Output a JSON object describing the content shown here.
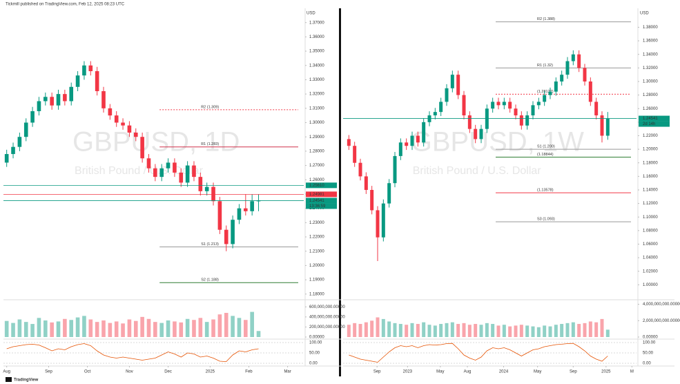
{
  "header": "Tickmill published on TradingView.com, Feb 12, 2025 08:23 UTC",
  "footer": "TradingView",
  "chart_data": [
    {
      "type": "candlestick",
      "title": "GBPUSD, 1D",
      "subtitle": "British Pound / U.S. Dollar",
      "axis_label": "USD",
      "up_color": "#089981",
      "down_color": "#f23645",
      "grid": false,
      "xlim": [
        -0.5,
        46
      ],
      "xticks": [
        {
          "value": 0,
          "label": "Aug"
        },
        {
          "value": 6.5,
          "label": "Sep"
        },
        {
          "value": 12.5,
          "label": "Oct"
        },
        {
          "value": 19,
          "label": "Nov"
        },
        {
          "value": 25,
          "label": "Dec"
        },
        {
          "value": 31.5,
          "label": "2025"
        },
        {
          "value": 37.5,
          "label": "Feb"
        },
        {
          "value": 43.5,
          "label": "Mar"
        }
      ],
      "ylim": [
        1.177,
        1.38
      ],
      "yticks": [
        {
          "value": 1.18,
          "label": "1.18000"
        },
        {
          "value": 1.19,
          "label": "1.19000"
        },
        {
          "value": 1.2,
          "label": "1.20000"
        },
        {
          "value": 1.21,
          "label": "1.21000"
        },
        {
          "value": 1.22,
          "label": "1.22000"
        },
        {
          "value": 1.23,
          "label": "1.23000"
        },
        {
          "value": 1.24,
          "label": "1.24000"
        },
        {
          "value": 1.25,
          "label": "1.25000"
        },
        {
          "value": 1.26,
          "label": "1.26000"
        },
        {
          "value": 1.27,
          "label": "1.27000"
        },
        {
          "value": 1.28,
          "label": "1.28000"
        },
        {
          "value": 1.29,
          "label": "1.29000"
        },
        {
          "value": 1.3,
          "label": "1.30000"
        },
        {
          "value": 1.31,
          "label": "1.31000"
        },
        {
          "value": 1.32,
          "label": "1.32000"
        },
        {
          "value": 1.33,
          "label": "1.33000"
        },
        {
          "value": 1.34,
          "label": "1.34000"
        },
        {
          "value": 1.35,
          "label": "1.35000"
        },
        {
          "value": 1.36,
          "label": "1.36000"
        },
        {
          "value": 1.37,
          "label": "1.37000"
        }
      ],
      "ohlc": [
        [
          1.272,
          1.281,
          1.269,
          1.278
        ],
        [
          1.278,
          1.286,
          1.275,
          1.283
        ],
        [
          1.283,
          1.293,
          1.28,
          1.29
        ],
        [
          1.29,
          1.303,
          1.287,
          1.3
        ],
        [
          1.3,
          1.311,
          1.297,
          1.308
        ],
        [
          1.308,
          1.318,
          1.305,
          1.315
        ],
        [
          1.315,
          1.321,
          1.312,
          1.318
        ],
        [
          1.318,
          1.321,
          1.309,
          1.312
        ],
        [
          1.312,
          1.323,
          1.309,
          1.32
        ],
        [
          1.32,
          1.323,
          1.312,
          1.315
        ],
        [
          1.315,
          1.328,
          1.312,
          1.325
        ],
        [
          1.325,
          1.336,
          1.322,
          1.333
        ],
        [
          1.333,
          1.343,
          1.33,
          1.34
        ],
        [
          1.34,
          1.343,
          1.333,
          1.336
        ],
        [
          1.336,
          1.339,
          1.319,
          1.322
        ],
        [
          1.322,
          1.325,
          1.307,
          1.31
        ],
        [
          1.31,
          1.313,
          1.302,
          1.305
        ],
        [
          1.305,
          1.308,
          1.297,
          1.3
        ],
        [
          1.3,
          1.303,
          1.295,
          1.298
        ],
        [
          1.298,
          1.301,
          1.29,
          1.293
        ],
        [
          1.293,
          1.296,
          1.287,
          1.29
        ],
        [
          1.29,
          1.293,
          1.272,
          1.275
        ],
        [
          1.275,
          1.278,
          1.265,
          1.268
        ],
        [
          1.268,
          1.271,
          1.259,
          1.262
        ],
        [
          1.262,
          1.271,
          1.259,
          1.268
        ],
        [
          1.268,
          1.275,
          1.265,
          1.272
        ],
        [
          1.272,
          1.275,
          1.262,
          1.265
        ],
        [
          1.265,
          1.268,
          1.255,
          1.258
        ],
        [
          1.258,
          1.273,
          1.255,
          1.27
        ],
        [
          1.27,
          1.273,
          1.259,
          1.262
        ],
        [
          1.262,
          1.265,
          1.249,
          1.252
        ],
        [
          1.252,
          1.258,
          1.249,
          1.255
        ],
        [
          1.255,
          1.258,
          1.242,
          1.245
        ],
        [
          1.245,
          1.248,
          1.222,
          1.225
        ],
        [
          1.225,
          1.228,
          1.21,
          1.215
        ],
        [
          1.215,
          1.235,
          1.212,
          1.232
        ],
        [
          1.232,
          1.243,
          1.229,
          1.24
        ],
        [
          1.24,
          1.25,
          1.235,
          1.238
        ],
        [
          1.238,
          1.25,
          1.235,
          1.245
        ],
        [
          1.245,
          1.2498,
          1.238,
          1.2454
        ]
      ],
      "levels": [
        {
          "label": "R2 (1.309)",
          "value": 1.309,
          "color": "#f23645",
          "dash": true
        },
        {
          "label": "R1 (1.283)",
          "value": 1.283,
          "color": "#d0304a",
          "dash": false
        },
        {
          "label": "S1 (1.213)",
          "value": 1.213,
          "color": "#999999",
          "dash": false
        },
        {
          "label": "S2 (1.188)",
          "value": 1.188,
          "color": "#2e7d32",
          "dash": false
        }
      ],
      "price_tags": [
        {
          "value": 1.2561,
          "label": "1.25610",
          "color": "#089981"
        },
        {
          "value": 1.24981,
          "label": "1.24981",
          "color": "#f23645"
        },
        {
          "value": 1.24541,
          "label": "1.24541",
          "color": "#089981"
        }
      ],
      "countdown": "13:36:59",
      "volume": [
        320000000,
        280000000,
        350000000,
        300000000,
        260000000,
        380000000,
        330000000,
        290000000,
        310000000,
        360000000,
        340000000,
        390000000,
        420000000,
        350000000,
        300000000,
        330000000,
        280000000,
        310000000,
        270000000,
        350000000,
        320000000,
        400000000,
        360000000,
        300000000,
        280000000,
        330000000,
        310000000,
        290000000,
        360000000,
        340000000,
        380000000,
        300000000,
        350000000,
        450000000,
        480000000,
        420000000,
        380000000,
        340000000,
        500000000,
        120000000
      ],
      "vlim": [
        0,
        700000000
      ],
      "vticks": [
        {
          "value": 0,
          "label": "0.00000"
        },
        {
          "value": 200000000,
          "label": "200,000,000.00000"
        },
        {
          "value": 400000000,
          "label": "400,000,000.00000"
        },
        {
          "value": 600000000,
          "label": "600,000,000.00000"
        }
      ],
      "stoch_k": [
        70,
        80,
        85,
        90,
        92,
        88,
        75,
        60,
        70,
        65,
        80,
        90,
        95,
        85,
        60,
        40,
        30,
        25,
        30,
        25,
        20,
        15,
        20,
        25,
        40,
        55,
        45,
        30,
        50,
        45,
        30,
        35,
        25,
        10,
        8,
        40,
        60,
        55,
        65,
        70
      ],
      "stoch_color": "#e65100",
      "slim": [
        0,
        100
      ],
      "sticks": [
        {
          "value": 0,
          "label": "0.00"
        },
        {
          "value": 50,
          "label": "50.00"
        },
        {
          "value": 100,
          "label": "100.00"
        }
      ]
    },
    {
      "type": "candlestick",
      "title": "GBPUSD, 1W",
      "subtitle": "British Pound / U.S. Dollar",
      "axis_label": "USD",
      "up_color": "#089981",
      "down_color": "#f23645",
      "grid": false,
      "xlim": [
        -1,
        50
      ],
      "xticks": [
        {
          "value": 4.9,
          "label": "Sep"
        },
        {
          "value": 10.2,
          "label": "2023"
        },
        {
          "value": 15.9,
          "label": "May"
        },
        {
          "value": 20.6,
          "label": "Aug"
        },
        {
          "value": 26.9,
          "label": "2024"
        },
        {
          "value": 32.8,
          "label": "May"
        },
        {
          "value": 39,
          "label": "Sep"
        },
        {
          "value": 44.7,
          "label": "2025"
        },
        {
          "value": 49.2,
          "label": "M"
        }
      ],
      "ylim": [
        0.98,
        1.408
      ],
      "yticks": [
        {
          "value": 1.0,
          "label": "1.00000"
        },
        {
          "value": 1.02,
          "label": "1.02000"
        },
        {
          "value": 1.04,
          "label": "1.04000"
        },
        {
          "value": 1.06,
          "label": "1.06000"
        },
        {
          "value": 1.08,
          "label": "1.08000"
        },
        {
          "value": 1.1,
          "label": "1.10000"
        },
        {
          "value": 1.12,
          "label": "1.12000"
        },
        {
          "value": 1.14,
          "label": "1.14000"
        },
        {
          "value": 1.16,
          "label": "1.16000"
        },
        {
          "value": 1.18,
          "label": "1.18000"
        },
        {
          "value": 1.2,
          "label": "1.20000"
        },
        {
          "value": 1.22,
          "label": "1.22000"
        },
        {
          "value": 1.24,
          "label": "1.24000"
        },
        {
          "value": 1.26,
          "label": "1.26000"
        },
        {
          "value": 1.28,
          "label": "1.28000"
        },
        {
          "value": 1.3,
          "label": "1.30000"
        },
        {
          "value": 1.32,
          "label": "1.32000"
        },
        {
          "value": 1.34,
          "label": "1.34000"
        },
        {
          "value": 1.36,
          "label": "1.36000"
        },
        {
          "value": 1.38,
          "label": "1.38000"
        }
      ],
      "ohlc": [
        [
          1.215,
          1.221,
          1.199,
          1.205
        ],
        [
          1.205,
          1.211,
          1.174,
          1.18
        ],
        [
          1.18,
          1.186,
          1.154,
          1.16
        ],
        [
          1.16,
          1.166,
          1.134,
          1.14
        ],
        [
          1.14,
          1.146,
          1.104,
          1.11
        ],
        [
          1.11,
          1.116,
          1.035,
          1.07
        ],
        [
          1.07,
          1.126,
          1.064,
          1.12
        ],
        [
          1.12,
          1.156,
          1.114,
          1.15
        ],
        [
          1.15,
          1.196,
          1.144,
          1.19
        ],
        [
          1.19,
          1.216,
          1.184,
          1.21
        ],
        [
          1.21,
          1.216,
          1.199,
          1.205
        ],
        [
          1.205,
          1.226,
          1.199,
          1.22
        ],
        [
          1.22,
          1.226,
          1.204,
          1.21
        ],
        [
          1.21,
          1.246,
          1.204,
          1.24
        ],
        [
          1.24,
          1.256,
          1.234,
          1.25
        ],
        [
          1.25,
          1.261,
          1.244,
          1.255
        ],
        [
          1.255,
          1.276,
          1.249,
          1.27
        ],
        [
          1.27,
          1.296,
          1.264,
          1.29
        ],
        [
          1.29,
          1.316,
          1.284,
          1.31
        ],
        [
          1.31,
          1.316,
          1.274,
          1.28
        ],
        [
          1.28,
          1.286,
          1.244,
          1.25
        ],
        [
          1.25,
          1.256,
          1.224,
          1.23
        ],
        [
          1.23,
          1.236,
          1.209,
          1.215
        ],
        [
          1.215,
          1.236,
          1.209,
          1.23
        ],
        [
          1.23,
          1.266,
          1.224,
          1.26
        ],
        [
          1.26,
          1.276,
          1.254,
          1.27
        ],
        [
          1.27,
          1.276,
          1.259,
          1.265
        ],
        [
          1.265,
          1.276,
          1.259,
          1.27
        ],
        [
          1.27,
          1.276,
          1.254,
          1.26
        ],
        [
          1.26,
          1.266,
          1.244,
          1.25
        ],
        [
          1.25,
          1.256,
          1.229,
          1.235
        ],
        [
          1.235,
          1.256,
          1.229,
          1.25
        ],
        [
          1.25,
          1.271,
          1.244,
          1.265
        ],
        [
          1.265,
          1.276,
          1.259,
          1.27
        ],
        [
          1.27,
          1.286,
          1.264,
          1.28
        ],
        [
          1.28,
          1.291,
          1.274,
          1.285
        ],
        [
          1.285,
          1.306,
          1.279,
          1.3
        ],
        [
          1.3,
          1.316,
          1.294,
          1.31
        ],
        [
          1.31,
          1.336,
          1.304,
          1.33
        ],
        [
          1.33,
          1.346,
          1.324,
          1.34
        ],
        [
          1.34,
          1.346,
          1.314,
          1.32
        ],
        [
          1.32,
          1.326,
          1.294,
          1.3
        ],
        [
          1.3,
          1.306,
          1.264,
          1.27
        ],
        [
          1.27,
          1.276,
          1.244,
          1.25
        ],
        [
          1.25,
          1.256,
          1.21,
          1.22
        ],
        [
          1.22,
          1.255,
          1.214,
          1.2454
        ]
      ],
      "levels": [
        {
          "label": "R2 (1.388)",
          "value": 1.388,
          "color": "#999999",
          "dash": false
        },
        {
          "label": "R1 (1.32)",
          "value": 1.32,
          "color": "#999999",
          "dash": false
        },
        {
          "label": "(1.28127)",
          "value": 1.28127,
          "color": "#f23645",
          "dash": true
        },
        {
          "label": "S1 (1.200)",
          "value": 1.2,
          "color": "#999999",
          "dash": false
        },
        {
          "label": "(1.18844)",
          "value": 1.18844,
          "color": "#2e7d32",
          "dash": false
        },
        {
          "label": "(1.13578)",
          "value": 1.13578,
          "color": "#f23645",
          "dash": false
        },
        {
          "label": "S3 (1.093)",
          "value": 1.093,
          "color": "#999999",
          "dash": false
        }
      ],
      "price_tags": [
        {
          "value": 1.24541,
          "label": "1.24541",
          "color": "#089981"
        }
      ],
      "countdown": "2d 14h",
      "volume": [
        1500000000,
        1700000000,
        1600000000,
        1800000000,
        2000000000,
        2400000000,
        2200000000,
        1900000000,
        1700000000,
        1600000000,
        1500000000,
        1700000000,
        1600000000,
        1800000000,
        1500000000,
        1400000000,
        1600000000,
        1700000000,
        1800000000,
        1600000000,
        1700000000,
        1500000000,
        1600000000,
        1500000000,
        1700000000,
        1600000000,
        1400000000,
        1500000000,
        1300000000,
        1400000000,
        1500000000,
        1400000000,
        1300000000,
        1200000000,
        1400000000,
        1300000000,
        1500000000,
        1600000000,
        1700000000,
        1800000000,
        1600000000,
        1700000000,
        1900000000,
        1800000000,
        2200000000,
        900000000
      ],
      "vlim": [
        0,
        4300000000
      ],
      "vticks": [
        {
          "value": 0,
          "label": "0.00000"
        },
        {
          "value": 2000000000,
          "label": "2,000,000,000.00000"
        },
        {
          "value": 4000000000,
          "label": "4,000,000,000.00000"
        }
      ],
      "stoch_k": [
        40,
        30,
        20,
        15,
        10,
        5,
        30,
        55,
        75,
        85,
        80,
        85,
        75,
        85,
        90,
        88,
        90,
        95,
        96,
        70,
        40,
        25,
        15,
        30,
        60,
        75,
        70,
        75,
        65,
        50,
        35,
        50,
        65,
        70,
        80,
        85,
        90,
        92,
        95,
        96,
        80,
        60,
        35,
        20,
        10,
        35
      ],
      "stoch_color": "#e65100",
      "slim": [
        0,
        100
      ],
      "sticks": [
        {
          "value": 0,
          "label": "0.00"
        },
        {
          "value": 50,
          "label": "50.00"
        },
        {
          "value": 100,
          "label": "100.00"
        }
      ]
    }
  ]
}
